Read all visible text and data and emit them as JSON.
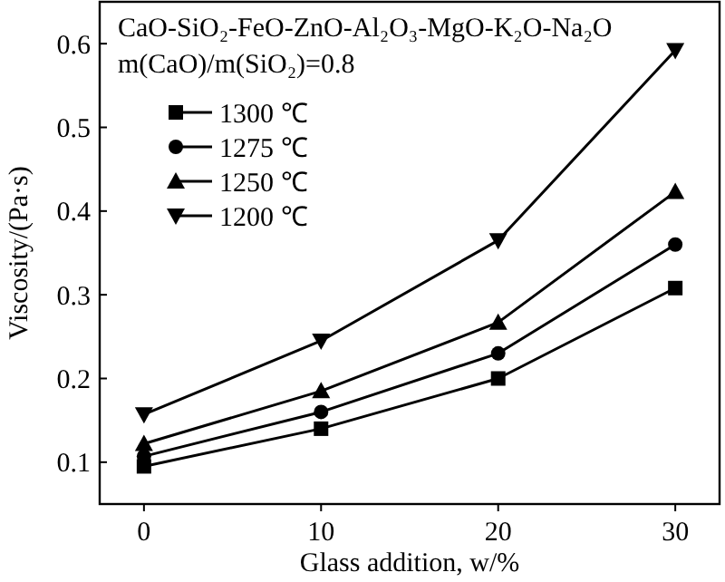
{
  "chart_data": {
    "type": "line",
    "title": "CaO-SiO₂-FeO-ZnO-Al₂O₃-MgO-K₂O-Na₂O",
    "annotations": [
      "m(CaO)/m(SiO₂)=0.8"
    ],
    "xlabel": "Glass addition, w/%",
    "ylabel": "Viscosity/(Pa·s)",
    "x": [
      0,
      10,
      20,
      30
    ],
    "xlim": [
      -2.5,
      32.5
    ],
    "xticks": [
      0,
      10,
      20,
      30
    ],
    "ylim": [
      0.05,
      0.65
    ],
    "yticks": [
      0.1,
      0.2,
      0.3,
      0.4,
      0.5,
      0.6
    ],
    "grid": false,
    "legend": "top left",
    "line_style": "solid",
    "series": [
      {
        "name": "1300 ℃",
        "color": "#000000",
        "marker": "square",
        "values": [
          0.095,
          0.14,
          0.2,
          0.308
        ]
      },
      {
        "name": "1275 ℃",
        "color": "#000000",
        "marker": "circle",
        "values": [
          0.107,
          0.16,
          0.23,
          0.36
        ]
      },
      {
        "name": "1250 ℃",
        "color": "#000000",
        "marker": "triangle",
        "values": [
          0.122,
          0.185,
          0.267,
          0.423
        ]
      },
      {
        "name": "1200 ℃",
        "color": "#000000",
        "marker": "triangle-down",
        "values": [
          0.157,
          0.245,
          0.365,
          0.592
        ]
      }
    ]
  }
}
